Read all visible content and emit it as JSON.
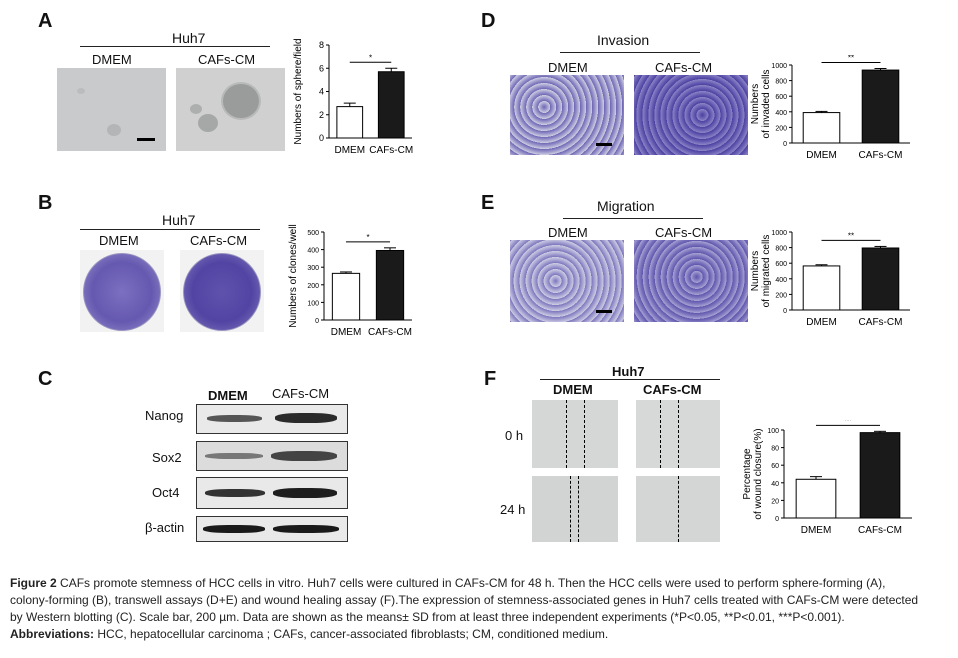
{
  "panels": {
    "A": {
      "letter": "A",
      "group": "Huh7",
      "col1": "DMEM",
      "col2": "CAFs-CM"
    },
    "B": {
      "letter": "B",
      "group": "Huh7",
      "col1": "DMEM",
      "col2": "CAFs-CM"
    },
    "C": {
      "letter": "C",
      "col1": "DMEM",
      "col2": "CAFs-CM",
      "rows": [
        "Nanog",
        "Sox2",
        "Oct4",
        "β-actin"
      ]
    },
    "D": {
      "letter": "D",
      "group": "Invasion",
      "col1": "DMEM",
      "col2": "CAFs-CM"
    },
    "E": {
      "letter": "E",
      "group": "Migration",
      "col1": "DMEM",
      "col2": "CAFs-CM"
    },
    "F": {
      "letter": "F",
      "group": "Huh7",
      "col1": "DMEM",
      "col2": "CAFs-CM",
      "row1": "0 h",
      "row2": "24 h"
    }
  },
  "chart_data": [
    {
      "panel": "A",
      "type": "bar",
      "categories": [
        "DMEM",
        "CAFs-CM"
      ],
      "values": [
        2.7,
        5.7
      ],
      "errors": [
        0.3,
        0.3
      ],
      "ylabel": "Numbers of sphere/field",
      "ylim": [
        0,
        8
      ],
      "yticks": [
        0,
        2,
        4,
        6,
        8
      ],
      "significance": "*",
      "colors": [
        "#ffffff",
        "#1a1a1a"
      ]
    },
    {
      "panel": "B",
      "type": "bar",
      "categories": [
        "DMEM",
        "CAFs-CM"
      ],
      "values": [
        265,
        395
      ],
      "errors": [
        8,
        15
      ],
      "ylabel": "Numbers of clones/well",
      "ylim": [
        0,
        500
      ],
      "yticks": [
        0,
        100,
        200,
        300,
        400,
        500
      ],
      "significance": "*",
      "colors": [
        "#ffffff",
        "#1a1a1a"
      ]
    },
    {
      "panel": "D",
      "type": "bar",
      "categories": [
        "DMEM",
        "CAFs-CM"
      ],
      "values": [
        390,
        935
      ],
      "errors": [
        15,
        20
      ],
      "ylabel": "Numbers of invaded cells",
      "ylabel_lines": [
        "Numbers",
        "of invaded cells"
      ],
      "ylim": [
        0,
        1000
      ],
      "yticks": [
        0,
        200,
        400,
        600,
        800,
        1000
      ],
      "significance": "**",
      "colors": [
        "#ffffff",
        "#1a1a1a"
      ]
    },
    {
      "panel": "E",
      "type": "bar",
      "categories": [
        "DMEM",
        "CAFs-CM"
      ],
      "values": [
        565,
        795
      ],
      "errors": [
        15,
        20
      ],
      "ylabel": "Numbers of migrated cells",
      "ylabel_lines": [
        "Numbers",
        "of migrated cells"
      ],
      "ylim": [
        0,
        1000
      ],
      "yticks": [
        0,
        200,
        400,
        600,
        800,
        1000
      ],
      "significance": "**",
      "colors": [
        "#ffffff",
        "#1a1a1a"
      ]
    },
    {
      "panel": "F",
      "type": "bar",
      "categories": [
        "DMEM",
        "CAFs-CM"
      ],
      "values": [
        44,
        97
      ],
      "errors": [
        3,
        1.5
      ],
      "ylabel": "Percentage of wound closure(%)",
      "ylabel_lines": [
        "Percentage",
        "of wound closure(%)"
      ],
      "ylim": [
        0,
        100
      ],
      "yticks": [
        0,
        20,
        40,
        60,
        80,
        100
      ],
      "significance": "**",
      "colors": [
        "#ffffff",
        "#1a1a1a"
      ]
    }
  ],
  "caption": {
    "line1_label": "Figure 2",
    "line1_text": "CAFs promote stemness of HCC cells in vitro. Huh7 cells were cultured in CAFs-CM for 48 h. Then the HCC cells were used to perform sphere-forming (A),",
    "line2_text": "colony-forming (B), transwell assays (D+E) and wound healing assay (F).The expression of stemness-associated genes in Huh7 cells treated with CAFs-CM were detected",
    "line3_text": "by Western blotting (C). Scale bar, 200 µm. Data are shown as the means± SD from at least three independent experiments (*P<0.05, **P<0.01, ***P<0.001).",
    "abbr_label": "Abbreviations:",
    "abbr_text": "HCC, hepatocellular carcinoma ; CAFs, cancer-associated fibroblasts; CM, conditioned medium."
  },
  "colors": {
    "micrograph_gray": "#c9cbcc",
    "crystal_violet": "#5b4fa8",
    "wound_gray": "#d4d6d6",
    "bar_dark": "#1a1a1a"
  }
}
